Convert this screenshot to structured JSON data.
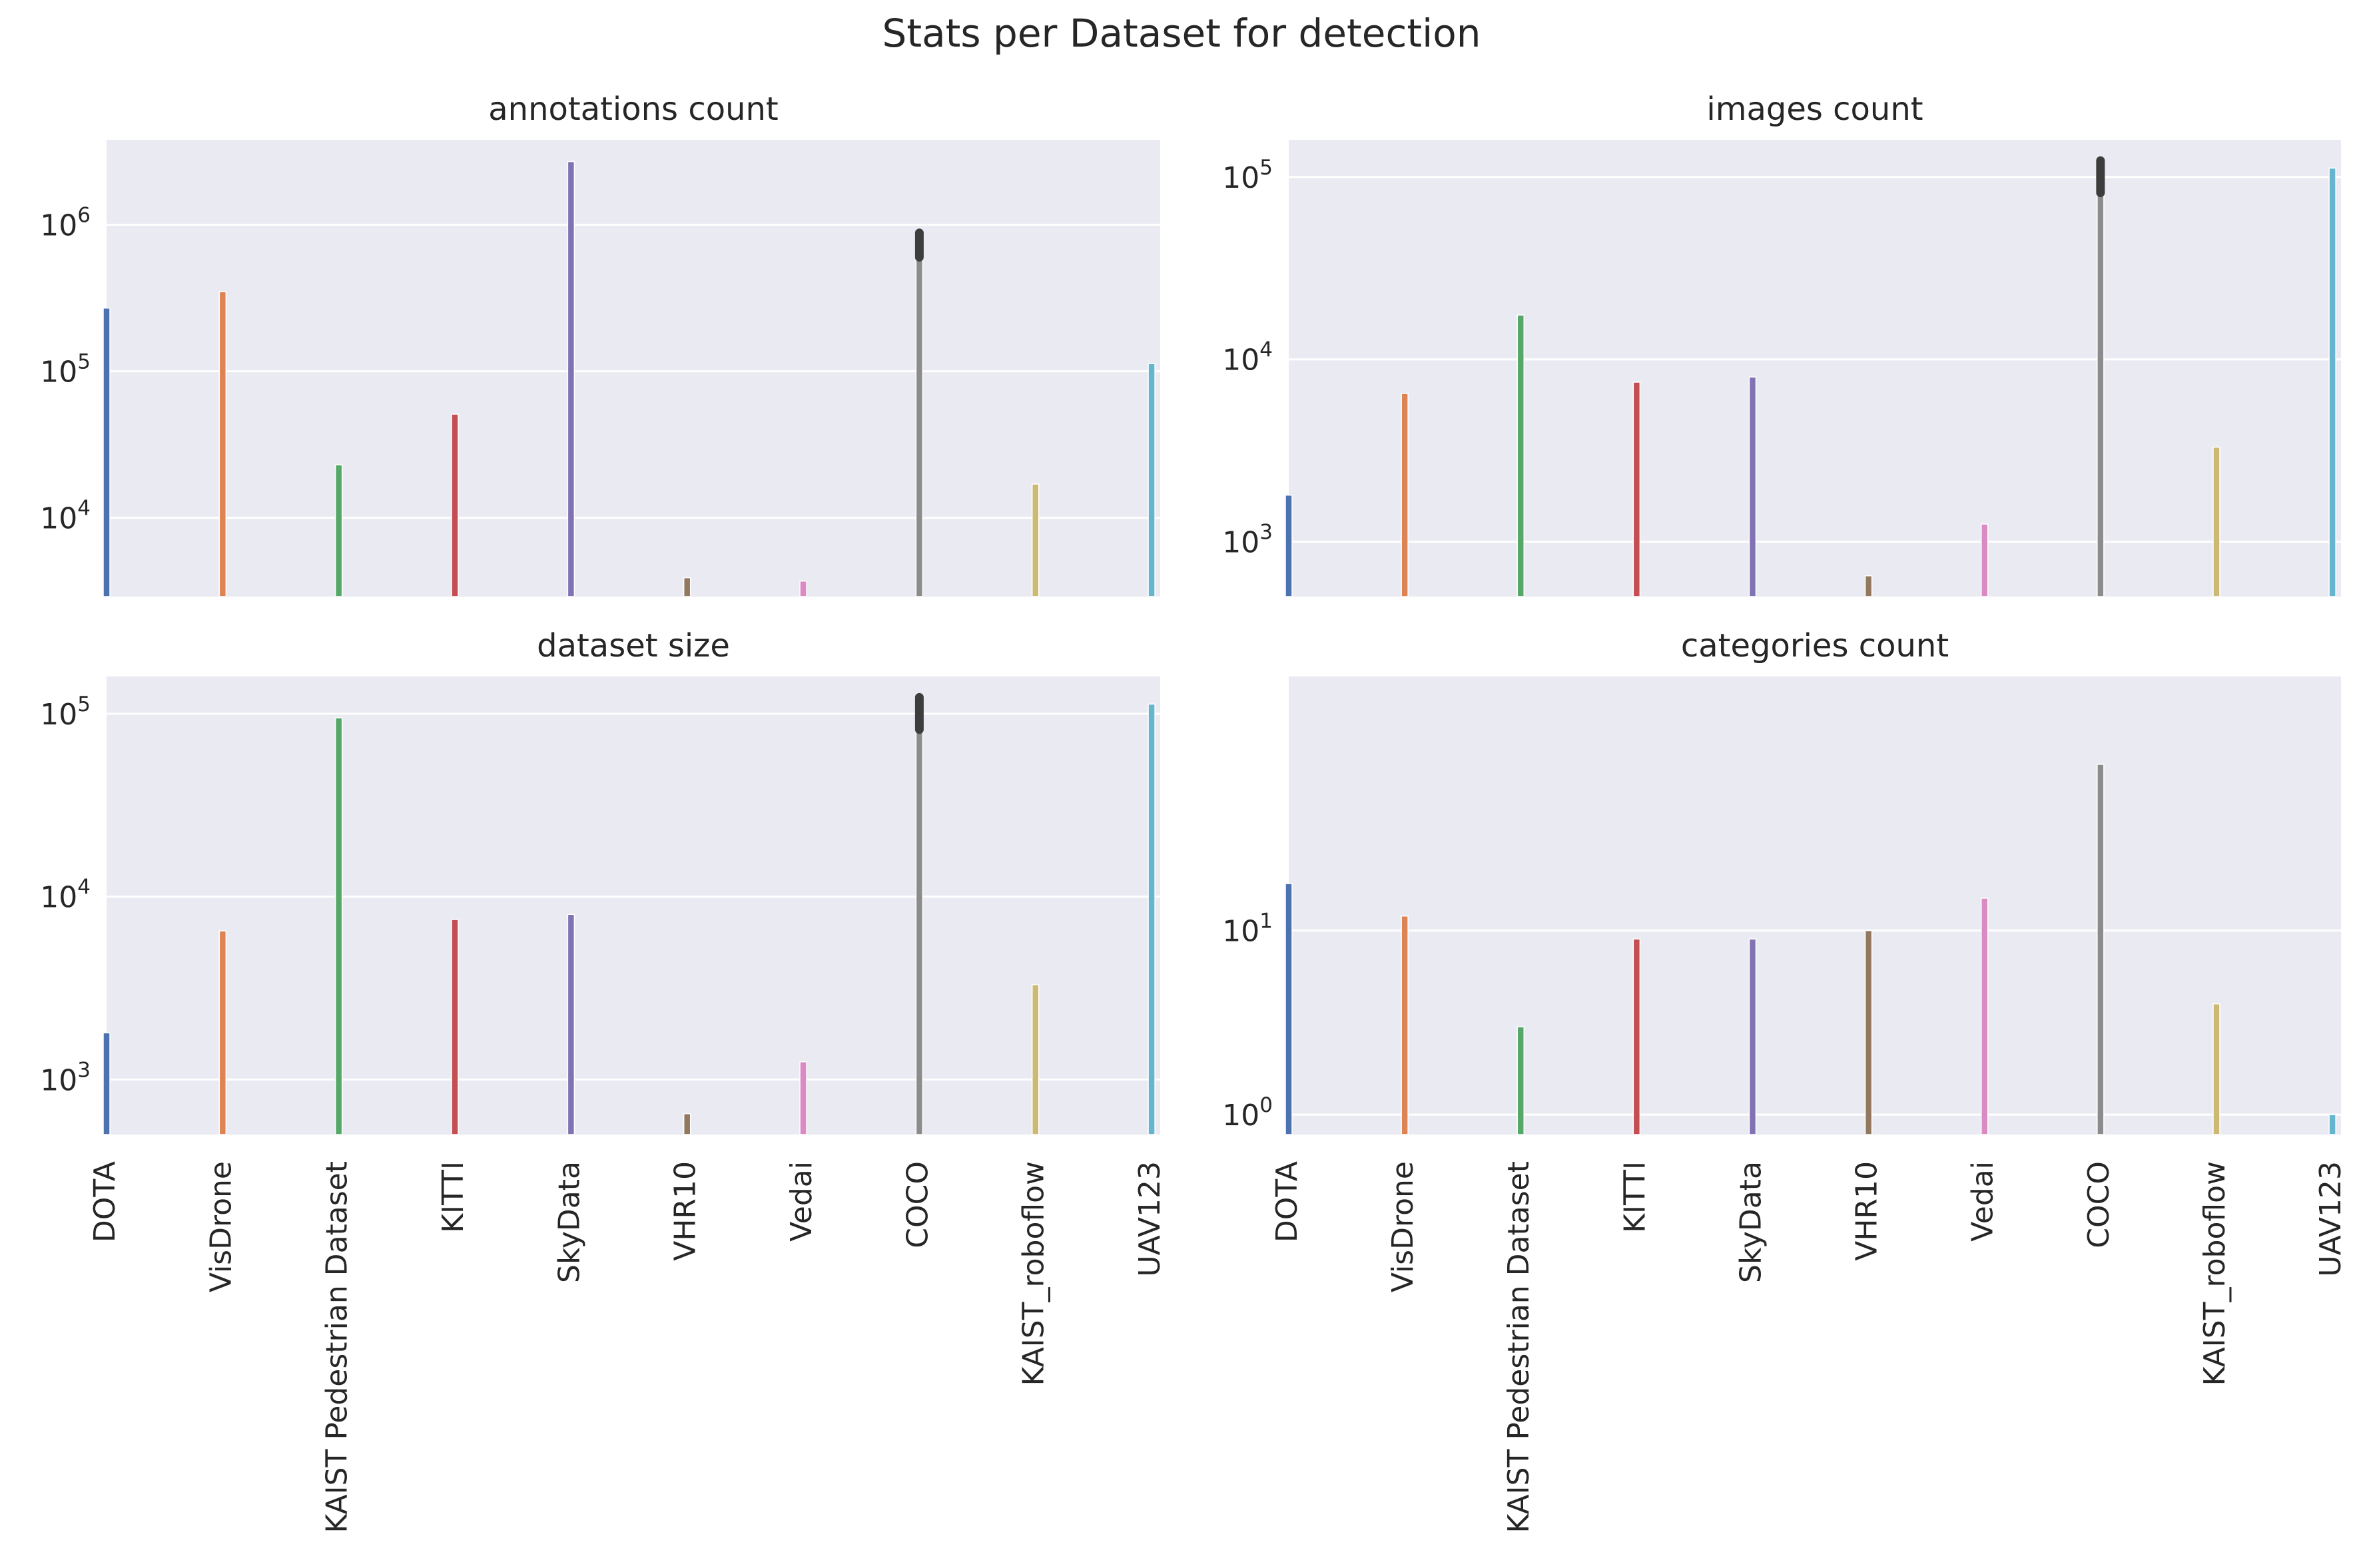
{
  "figure": {
    "title": "Stats per Dataset for detection"
  },
  "chart_data": [
    {
      "type": "bar",
      "title": "annotations count",
      "yscale": "log",
      "ylim": [
        2900,
        3800000
      ],
      "yticks": [
        {
          "value": 10000,
          "base": "10",
          "exp": "4"
        },
        {
          "value": 100000,
          "base": "10",
          "exp": "5"
        },
        {
          "value": 1000000,
          "base": "10",
          "exp": "6"
        }
      ],
      "grid": true,
      "categories": [
        "DOTA",
        "VisDrone",
        "KAIST Pedestrian Dataset",
        "KITTI",
        "SkyData",
        "VHR10",
        "Vedai",
        "COCO",
        "KAIST_roboflow",
        "UAV123"
      ],
      "values": [
        270000,
        350000,
        23000,
        51000,
        2700000,
        3900,
        3700,
        860000,
        17000,
        113000
      ],
      "error_bars": [
        null,
        null,
        null,
        null,
        null,
        null,
        null,
        [
          600000,
          880000
        ],
        null,
        null
      ],
      "colors": [
        "#4c72b0",
        "#dd8452",
        "#55a868",
        "#c44e52",
        "#8172b3",
        "#937860",
        "#da8bc3",
        "#8c8c8c",
        "#ccb974",
        "#64b5cd"
      ]
    },
    {
      "type": "bar",
      "title": "images count",
      "yscale": "log",
      "ylim": [
        500,
        160000
      ],
      "yticks": [
        {
          "value": 1000,
          "base": "10",
          "exp": "3"
        },
        {
          "value": 10000,
          "base": "10",
          "exp": "4"
        },
        {
          "value": 100000,
          "base": "10",
          "exp": "5"
        }
      ],
      "grid": true,
      "categories": [
        "DOTA",
        "VisDrone",
        "KAIST Pedestrian Dataset",
        "KITTI",
        "SkyData",
        "VHR10",
        "Vedai",
        "COCO",
        "KAIST_roboflow",
        "UAV123"
      ],
      "values": [
        1800,
        6500,
        17500,
        7500,
        8000,
        650,
        1250,
        123000,
        3300,
        112000
      ],
      "error_bars": [
        null,
        null,
        null,
        null,
        null,
        null,
        null,
        [
          82000,
          123000
        ],
        null,
        null
      ],
      "colors": [
        "#4c72b0",
        "#dd8452",
        "#55a868",
        "#c44e52",
        "#8172b3",
        "#937860",
        "#da8bc3",
        "#8c8c8c",
        "#ccb974",
        "#64b5cd"
      ]
    },
    {
      "type": "bar",
      "title": "dataset size",
      "yscale": "log",
      "ylim": [
        500,
        160000
      ],
      "yticks": [
        {
          "value": 1000,
          "base": "10",
          "exp": "3"
        },
        {
          "value": 10000,
          "base": "10",
          "exp": "4"
        },
        {
          "value": 100000,
          "base": "10",
          "exp": "5"
        }
      ],
      "grid": true,
      "categories": [
        "DOTA",
        "VisDrone",
        "KAIST Pedestrian Dataset",
        "KITTI",
        "SkyData",
        "VHR10",
        "Vedai",
        "COCO",
        "KAIST_roboflow",
        "UAV123"
      ],
      "values": [
        1800,
        6500,
        95000,
        7500,
        8000,
        650,
        1250,
        123000,
        3300,
        113000
      ],
      "error_bars": [
        null,
        null,
        null,
        null,
        null,
        null,
        null,
        [
          82000,
          123000
        ],
        null,
        null
      ],
      "colors": [
        "#4c72b0",
        "#dd8452",
        "#55a868",
        "#c44e52",
        "#8172b3",
        "#937860",
        "#da8bc3",
        "#8c8c8c",
        "#ccb974",
        "#64b5cd"
      ]
    },
    {
      "type": "bar",
      "title": "categories count",
      "yscale": "log",
      "ylim": [
        0.78,
        240
      ],
      "yticks": [
        {
          "value": 1,
          "base": "10",
          "exp": "0"
        },
        {
          "value": 10,
          "base": "10",
          "exp": "1"
        }
      ],
      "grid": true,
      "categories": [
        "DOTA",
        "VisDrone",
        "KAIST Pedestrian Dataset",
        "KITTI",
        "SkyData",
        "VHR10",
        "Vedai",
        "COCO",
        "KAIST_roboflow",
        "UAV123"
      ],
      "values": [
        18,
        12,
        3,
        9,
        9,
        10,
        15,
        80,
        4,
        1
      ],
      "error_bars": [
        null,
        null,
        null,
        null,
        null,
        null,
        null,
        null,
        null,
        null
      ],
      "colors": [
        "#4c72b0",
        "#dd8452",
        "#55a868",
        "#c44e52",
        "#8172b3",
        "#937860",
        "#da8bc3",
        "#8c8c8c",
        "#ccb974",
        "#64b5cd"
      ]
    }
  ]
}
